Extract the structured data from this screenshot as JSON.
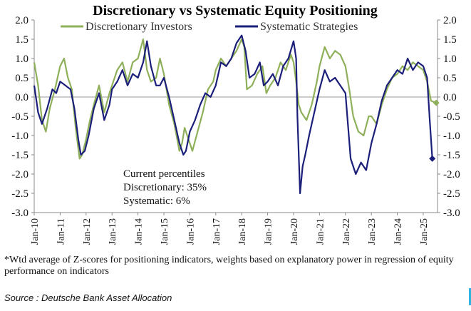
{
  "chart_data": {
    "type": "line",
    "title": "Discretionary  vs Systematic Equity Positioning",
    "xlabel": "",
    "ylabel": "",
    "ylim": [
      -3.0,
      2.0
    ],
    "yticks": [
      "2.0",
      "1.5",
      "1.0",
      "0.5",
      "0.0",
      "-0.5",
      "-1.0",
      "-1.5",
      "-2.0",
      "-2.5",
      "-3.0"
    ],
    "x_categories": [
      "Jan-10",
      "Jan-11",
      "Jan-12",
      "Jan-13",
      "Jan-14",
      "Jan-15",
      "Jan-16",
      "Jan-17",
      "Jan-18",
      "Jan-19",
      "Jan-20",
      "Jan-21",
      "Jan-22",
      "Jan-23",
      "Jan-24",
      "Jan-25"
    ],
    "legend": [
      "Discretionary Investors",
      "Systematic Strategies"
    ],
    "series": [
      {
        "name": "Discretionary Investors",
        "color": "#8fb05a",
        "x": [
          2010.0,
          2010.15,
          2010.3,
          2010.45,
          2010.6,
          2010.8,
          2011.0,
          2011.15,
          2011.3,
          2011.45,
          2011.6,
          2011.75,
          2011.85,
          2012.0,
          2012.15,
          2012.3,
          2012.5,
          2012.7,
          2012.9,
          2013.0,
          2013.2,
          2013.4,
          2013.6,
          2013.8,
          2014.0,
          2014.2,
          2014.35,
          2014.5,
          2014.7,
          2014.85,
          2015.0,
          2015.2,
          2015.4,
          2015.6,
          2015.7,
          2015.8,
          2016.0,
          2016.1,
          2016.3,
          2016.5,
          2016.7,
          2016.9,
          2017.0,
          2017.2,
          2017.4,
          2017.6,
          2017.8,
          2018.0,
          2018.1,
          2018.2,
          2018.4,
          2018.6,
          2018.8,
          2018.95,
          2019.1,
          2019.3,
          2019.5,
          2019.7,
          2019.9,
          2020.0,
          2020.1,
          2020.2,
          2020.3,
          2020.5,
          2020.7,
          2020.9,
          2021.0,
          2021.2,
          2021.4,
          2021.6,
          2021.8,
          2022.0,
          2022.15,
          2022.3,
          2022.5,
          2022.7,
          2022.9,
          2023.0,
          2023.2,
          2023.4,
          2023.6,
          2023.8,
          2024.0,
          2024.2,
          2024.4,
          2024.6,
          2024.8,
          2025.0,
          2025.15,
          2025.3,
          2025.5
        ],
        "values": [
          0.9,
          0.3,
          -0.6,
          -0.9,
          -0.3,
          0.2,
          0.8,
          1.0,
          0.5,
          0.2,
          -0.8,
          -1.6,
          -1.5,
          -1.1,
          -0.6,
          -0.2,
          0.3,
          -0.4,
          0.1,
          0.3,
          0.7,
          0.9,
          0.4,
          0.9,
          1.0,
          1.5,
          0.7,
          0.4,
          0.5,
          1.0,
          0.6,
          -0.2,
          -0.7,
          -1.4,
          -1.2,
          -0.8,
          -1.2,
          -1.4,
          -0.9,
          -0.4,
          0.2,
          0.4,
          0.7,
          1.0,
          0.8,
          1.0,
          1.2,
          1.5,
          1.3,
          0.2,
          0.3,
          0.6,
          0.8,
          0.1,
          0.3,
          0.5,
          0.9,
          0.7,
          1.1,
          0.9,
          0.4,
          -0.2,
          -0.4,
          -0.6,
          -0.2,
          0.4,
          0.8,
          1.3,
          1.0,
          1.2,
          1.1,
          0.8,
          0.2,
          -0.5,
          -0.9,
          -1.0,
          -0.5,
          -0.5,
          -0.7,
          -0.2,
          0.2,
          0.5,
          0.6,
          0.8,
          0.7,
          0.9,
          0.8,
          0.7,
          0.4,
          -0.1,
          -0.15
        ]
      },
      {
        "name": "Systematic Strategies",
        "color": "#1b1f7a",
        "x": [
          2010.0,
          2010.15,
          2010.3,
          2010.5,
          2010.7,
          2010.85,
          2011.0,
          2011.2,
          2011.4,
          2011.55,
          2011.7,
          2011.8,
          2011.95,
          2012.1,
          2012.3,
          2012.5,
          2012.7,
          2012.9,
          2013.0,
          2013.2,
          2013.4,
          2013.6,
          2013.8,
          2014.0,
          2014.2,
          2014.35,
          2014.5,
          2014.7,
          2014.85,
          2015.0,
          2015.2,
          2015.4,
          2015.6,
          2015.75,
          2015.85,
          2016.0,
          2016.2,
          2016.4,
          2016.6,
          2016.8,
          2017.0,
          2017.2,
          2017.4,
          2017.6,
          2017.8,
          2018.0,
          2018.15,
          2018.3,
          2018.5,
          2018.7,
          2018.85,
          2019.0,
          2019.2,
          2019.4,
          2019.6,
          2019.8,
          2020.0,
          2020.1,
          2020.15,
          2020.25,
          2020.35,
          2020.45,
          2020.6,
          2020.8,
          2021.0,
          2021.2,
          2021.4,
          2021.6,
          2021.8,
          2022.0,
          2022.2,
          2022.4,
          2022.6,
          2022.8,
          2023.0,
          2023.2,
          2023.4,
          2023.6,
          2023.8,
          2024.0,
          2024.2,
          2024.4,
          2024.6,
          2024.8,
          2025.0,
          2025.15,
          2025.25,
          2025.35
        ],
        "values": [
          0.3,
          -0.4,
          -0.7,
          -0.3,
          0.2,
          0.1,
          0.4,
          0.3,
          0.2,
          -0.3,
          -1.1,
          -1.5,
          -1.4,
          -1.0,
          -0.3,
          0.1,
          -0.6,
          -0.2,
          0.2,
          0.4,
          0.7,
          0.3,
          0.6,
          0.5,
          0.9,
          1.45,
          0.8,
          0.3,
          0.3,
          0.5,
          0.0,
          -0.6,
          -1.2,
          -1.5,
          -1.4,
          -0.9,
          -0.6,
          -0.2,
          0.1,
          0.0,
          0.3,
          0.9,
          0.8,
          1.0,
          1.4,
          1.6,
          1.2,
          0.5,
          0.6,
          0.9,
          0.3,
          0.4,
          0.6,
          0.3,
          0.8,
          1.0,
          1.45,
          1.0,
          -0.5,
          -2.5,
          -1.8,
          -1.5,
          -1.0,
          -0.4,
          0.2,
          0.7,
          0.4,
          0.5,
          0.3,
          0.1,
          -1.6,
          -2.0,
          -1.7,
          -1.9,
          -1.2,
          -0.7,
          -0.1,
          0.3,
          0.5,
          0.7,
          0.6,
          1.0,
          0.7,
          0.9,
          0.8,
          0.5,
          -0.6,
          -1.6
        ]
      }
    ],
    "annotations": [
      "Current percentiles",
      "Discretionary: 35%",
      "Systematic: 6%"
    ]
  },
  "footnote": "*Wtd average of Z-scores for positioning indicators, weights based on explanatory power in regression of equity performance on indicators",
  "source": "Source : Deutsche Bank Asset Allocation",
  "colors": {
    "discretionary": "#8fb05a",
    "systematic": "#1b1f7a",
    "axis": "#888888",
    "zero_line": "#9a9a9a",
    "accent": "#2fb3e5"
  }
}
